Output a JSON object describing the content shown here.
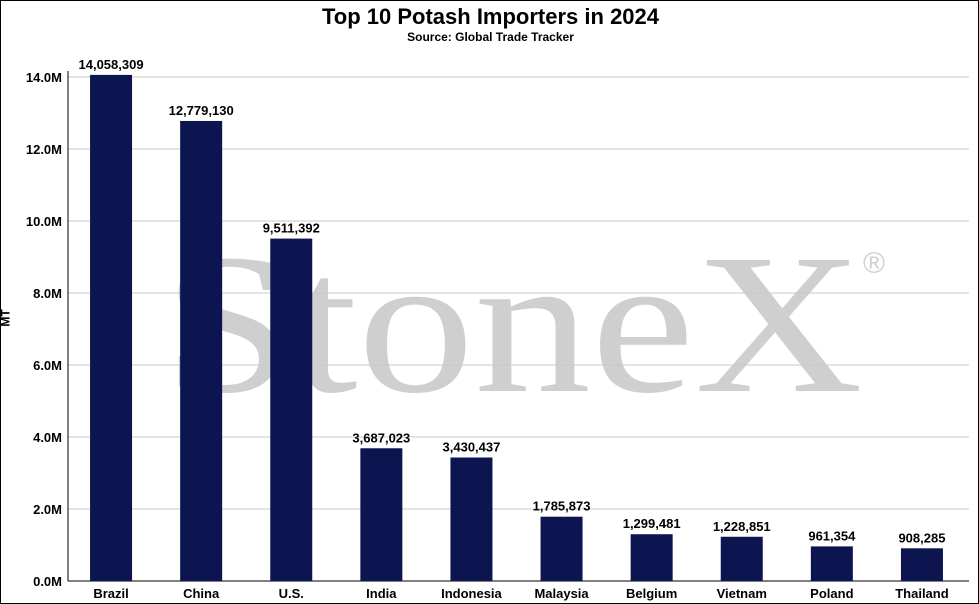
{
  "title": "Top 10 Potash Importers in 2024",
  "subtitle": "Source: Global Trade Tracker",
  "watermark": {
    "text": "StoneX",
    "mark": "®"
  },
  "colors": {
    "bar": "#0d1550",
    "grid": "#c8c8c8",
    "axis": "#000000",
    "watermark": "#cfcfcf"
  },
  "chart_data": {
    "type": "bar",
    "title": "Top 10 Potash Importers in 2024",
    "subtitle": "Source: Global Trade Tracker",
    "xlabel": "",
    "ylabel": "MT",
    "ylim": [
      0,
      14000000
    ],
    "grid": true,
    "legend": "none",
    "categories": [
      "Brazil",
      "China",
      "U.S.",
      "India",
      "Indonesia",
      "Malaysia",
      "Belgium",
      "Vietnam",
      "Poland",
      "Thailand"
    ],
    "values": [
      14058309,
      12779130,
      9511392,
      3687023,
      3430437,
      1785873,
      1299481,
      1228851,
      961354,
      908285
    ],
    "data_labels": [
      "14,058,309",
      "12,779,130",
      "9,511,392",
      "3,687,023",
      "3,430,437",
      "1,785,873",
      "1,299,481",
      "1,228,851",
      "961,354",
      "908,285"
    ],
    "yticks": [
      0,
      2000000,
      4000000,
      6000000,
      8000000,
      10000000,
      12000000,
      14000000
    ],
    "ytick_labels": [
      "0.0M",
      "2.0M",
      "4.0M",
      "6.0M",
      "8.0M",
      "10.0M",
      "12.0M",
      "14.0M"
    ]
  }
}
